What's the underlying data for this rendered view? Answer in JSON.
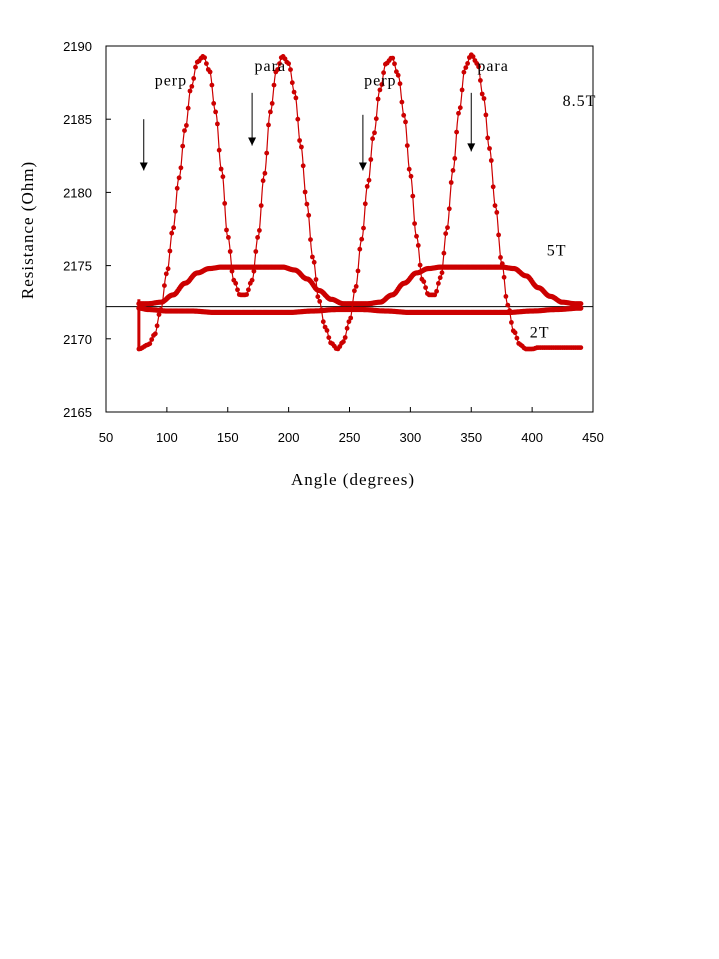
{
  "chart_data": {
    "type": "line",
    "title": "",
    "xlabel": "Angle (degrees)",
    "ylabel": "Resistance (Ohm)",
    "xlim": [
      50,
      450
    ],
    "ylim": [
      2165,
      2190
    ],
    "xticks": [
      50,
      100,
      150,
      200,
      250,
      300,
      350,
      400,
      450
    ],
    "yticks": [
      2165,
      2170,
      2175,
      2180,
      2185,
      2190
    ],
    "grid": false,
    "legend": "none",
    "reference_line": {
      "y": 2172.2,
      "color": "#000000"
    },
    "series_color": "#cc0000",
    "series": [
      {
        "name": "8.5T",
        "x": [
          77,
          85,
          90,
          95,
          100,
          105,
          110,
          115,
          120,
          125,
          130,
          135,
          140,
          145,
          150,
          155,
          160,
          165,
          170,
          175,
          180,
          185,
          190,
          195,
          200,
          205,
          210,
          215,
          220,
          225,
          230,
          235,
          240,
          245,
          250,
          255,
          260,
          265,
          270,
          275,
          280,
          285,
          290,
          295,
          300,
          305,
          310,
          315,
          320,
          325,
          330,
          335,
          340,
          345,
          350,
          355,
          360,
          365,
          370,
          375,
          380,
          385,
          390,
          395,
          400,
          405,
          410,
          415,
          420,
          425,
          430,
          435,
          440
        ],
        "y": [
          2169.3,
          2169.6,
          2170.3,
          2172.0,
          2174.5,
          2177.5,
          2181.0,
          2184.3,
          2187.2,
          2188.9,
          2189.3,
          2188.3,
          2185.5,
          2181.5,
          2177.0,
          2174.0,
          2173.0,
          2173.0,
          2174.0,
          2177.0,
          2181.2,
          2185.5,
          2188.3,
          2189.3,
          2188.8,
          2186.8,
          2183.2,
          2179.2,
          2175.5,
          2172.6,
          2170.8,
          2169.7,
          2169.3,
          2169.8,
          2171.2,
          2173.5,
          2176.8,
          2180.5,
          2184.0,
          2187.0,
          2188.8,
          2189.2,
          2188.0,
          2185.2,
          2181.2,
          2177.0,
          2174.0,
          2173.0,
          2173.0,
          2174.2,
          2177.5,
          2181.5,
          2185.5,
          2188.5,
          2189.4,
          2188.8,
          2186.5,
          2183.0,
          2179.0,
          2175.2,
          2172.3,
          2170.5,
          2169.6,
          2169.3,
          2169.3,
          2169.4,
          2169.4,
          2169.4,
          2169.4,
          2169.4,
          2169.4,
          2169.4,
          2169.4
        ],
        "x_offset_note_removed": true
      },
      {
        "name": "5T",
        "x": [
          77,
          85,
          95,
          105,
          115,
          125,
          135,
          145,
          155,
          165,
          175,
          185,
          195,
          205,
          215,
          225,
          235,
          245,
          255,
          265,
          275,
          285,
          295,
          305,
          315,
          325,
          335,
          345,
          355,
          365,
          375,
          385,
          395,
          405,
          415,
          425,
          435,
          440
        ],
        "y": [
          2172.4,
          2172.4,
          2172.5,
          2173.0,
          2173.8,
          2174.5,
          2174.8,
          2174.9,
          2174.9,
          2174.9,
          2174.9,
          2174.9,
          2174.9,
          2174.7,
          2174.1,
          2173.3,
          2172.7,
          2172.4,
          2172.4,
          2172.4,
          2172.5,
          2173.0,
          2173.8,
          2174.5,
          2174.8,
          2174.9,
          2174.9,
          2174.9,
          2174.9,
          2174.9,
          2174.9,
          2174.8,
          2174.3,
          2173.5,
          2172.9,
          2172.5,
          2172.4,
          2172.4
        ]
      },
      {
        "name": "2T",
        "x": [
          77,
          85,
          100,
          120,
          140,
          160,
          180,
          200,
          220,
          240,
          260,
          280,
          300,
          320,
          340,
          360,
          380,
          400,
          420,
          440
        ],
        "y": [
          2172.1,
          2172.0,
          2171.9,
          2171.9,
          2171.8,
          2171.8,
          2171.8,
          2171.8,
          2171.9,
          2172.0,
          2172.0,
          2171.9,
          2171.8,
          2171.8,
          2171.8,
          2171.8,
          2171.8,
          2171.9,
          2172.0,
          2172.1
        ]
      }
    ],
    "start_bracket": {
      "x": 77,
      "y_top": 2172.7,
      "y_bottom": 2169.3
    },
    "annotations": [
      {
        "text": "perp",
        "x": 90,
        "y": 2187.3,
        "arrow": {
          "x": 81,
          "y_from": 2185.0,
          "y_to": 2181.5
        }
      },
      {
        "text": "para",
        "x": 172,
        "y": 2188.3,
        "arrow": {
          "x": 170,
          "y_from": 2186.8,
          "y_to": 2183.2
        }
      },
      {
        "text": "perp",
        "x": 262,
        "y": 2187.3,
        "arrow": {
          "x": 261,
          "y_from": 2185.3,
          "y_to": 2181.5
        }
      },
      {
        "text": "para",
        "x": 355,
        "y": 2188.3,
        "arrow": {
          "x": 350,
          "y_from": 2186.8,
          "y_to": 2182.8
        }
      },
      {
        "text": "8.5T",
        "x": 425,
        "y": 2185.9
      },
      {
        "text": "5T",
        "x": 412,
        "y": 2175.7
      },
      {
        "text": "2T",
        "x": 398,
        "y": 2170.1
      }
    ]
  }
}
